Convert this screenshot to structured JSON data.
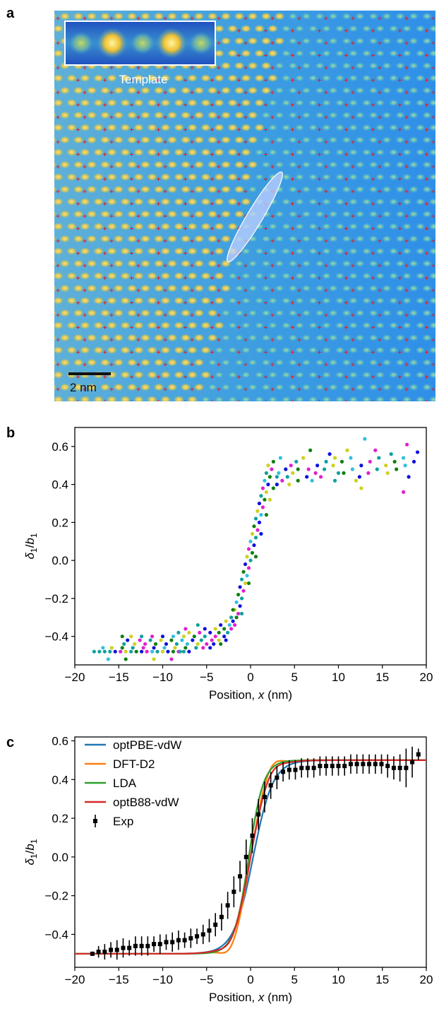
{
  "panels": {
    "a": {
      "letter": "a",
      "inset_label": "Template",
      "scale_bar_label": "2 nm",
      "colors": {
        "background": "#3a9fe0",
        "atom_bright": "#f5d050",
        "marker": "#e02020",
        "highlight": "#b8c8ff"
      }
    },
    "b": {
      "letter": "b"
    },
    "c": {
      "letter": "c"
    }
  },
  "chart_data": [
    {
      "panel": "b",
      "type": "scatter",
      "xlabel": "Position, x (nm)",
      "ylabel": "δ1/b1",
      "xlim": [
        -20,
        20
      ],
      "ylim": [
        -0.55,
        0.7
      ],
      "xticks": [
        -20,
        -15,
        -10,
        -5,
        0,
        5,
        10,
        15,
        20
      ],
      "yticks": [
        -0.4,
        -0.2,
        0.0,
        0.2,
        0.4,
        0.6
      ],
      "xtick_labels": [
        "−20",
        "−15",
        "−10",
        "−5",
        "0",
        "5",
        "10",
        "15",
        "20"
      ],
      "ytick_labels": [
        "−0.4",
        "−0.2",
        "0.0",
        "0.2",
        "0.4",
        "0.6"
      ],
      "series_colors": [
        "#1010e0",
        "#e020d0",
        "#10a0a0",
        "#d0d020",
        "#108010",
        "#30c0e0"
      ],
      "points": [
        [
          -17.8,
          -0.48,
          2
        ],
        [
          -17.2,
          -0.48,
          2
        ],
        [
          -16.6,
          -0.48,
          2
        ],
        [
          -16.0,
          -0.48,
          2
        ],
        [
          -15.4,
          -0.48,
          0
        ],
        [
          -14.8,
          -0.48,
          1
        ],
        [
          -14.2,
          -0.48,
          3
        ],
        [
          -13.6,
          -0.48,
          2
        ],
        [
          -13.0,
          -0.48,
          4
        ],
        [
          -12.4,
          -0.48,
          0
        ],
        [
          -11.8,
          -0.48,
          1
        ],
        [
          -11.2,
          -0.48,
          5
        ],
        [
          -10.6,
          -0.48,
          2
        ],
        [
          -10.0,
          -0.48,
          3
        ],
        [
          -9.4,
          -0.48,
          0
        ],
        [
          -8.8,
          -0.48,
          4
        ],
        [
          -8.2,
          -0.48,
          1
        ],
        [
          -7.6,
          -0.48,
          2
        ],
        [
          -7.0,
          -0.48,
          0
        ],
        [
          -16.8,
          -0.46,
          5
        ],
        [
          -15.8,
          -0.46,
          3
        ],
        [
          -14.6,
          -0.46,
          4
        ],
        [
          -13.4,
          -0.46,
          2
        ],
        [
          -12.2,
          -0.46,
          1
        ],
        [
          -11.0,
          -0.46,
          0
        ],
        [
          -9.8,
          -0.46,
          5
        ],
        [
          -8.6,
          -0.46,
          3
        ],
        [
          -7.4,
          -0.46,
          4
        ],
        [
          -6.2,
          -0.46,
          2
        ],
        [
          -5.4,
          -0.46,
          1
        ],
        [
          -4.6,
          -0.46,
          0
        ],
        [
          -14.4,
          -0.44,
          2
        ],
        [
          -13.2,
          -0.44,
          3
        ],
        [
          -12.0,
          -0.44,
          1
        ],
        [
          -10.8,
          -0.44,
          4
        ],
        [
          -9.6,
          -0.44,
          0
        ],
        [
          -8.4,
          -0.44,
          2
        ],
        [
          -7.2,
          -0.44,
          5
        ],
        [
          -6.0,
          -0.44,
          3
        ],
        [
          -5.0,
          -0.44,
          1
        ],
        [
          -4.2,
          -0.44,
          0
        ],
        [
          -3.4,
          -0.44,
          4
        ],
        [
          -14.0,
          -0.42,
          0
        ],
        [
          -12.6,
          -0.42,
          1
        ],
        [
          -11.4,
          -0.42,
          2
        ],
        [
          -10.2,
          -0.42,
          3
        ],
        [
          -9.0,
          -0.42,
          4
        ],
        [
          -7.8,
          -0.42,
          5
        ],
        [
          -6.6,
          -0.42,
          0
        ],
        [
          -5.6,
          -0.42,
          2
        ],
        [
          -4.4,
          -0.42,
          1
        ],
        [
          -3.6,
          -0.42,
          3
        ],
        [
          -2.8,
          -0.42,
          0
        ],
        [
          -14.6,
          -0.4,
          4
        ],
        [
          -13.6,
          -0.4,
          3
        ],
        [
          -12.4,
          -0.4,
          2
        ],
        [
          -11.2,
          -0.4,
          1
        ],
        [
          -10.0,
          -0.4,
          0
        ],
        [
          -8.8,
          -0.4,
          5
        ],
        [
          -7.6,
          -0.4,
          3
        ],
        [
          -6.4,
          -0.4,
          4
        ],
        [
          -5.2,
          -0.4,
          2
        ],
        [
          -4.0,
          -0.4,
          1
        ],
        [
          -3.0,
          -0.4,
          0
        ],
        [
          -8.2,
          -0.38,
          2
        ],
        [
          -7.0,
          -0.38,
          3
        ],
        [
          -5.8,
          -0.38,
          1
        ],
        [
          -4.6,
          -0.38,
          0
        ],
        [
          -3.6,
          -0.38,
          4
        ],
        [
          -2.6,
          -0.38,
          2
        ],
        [
          -7.4,
          -0.36,
          1
        ],
        [
          -5.2,
          -0.36,
          0
        ],
        [
          -4.0,
          -0.36,
          3
        ],
        [
          -3.0,
          -0.36,
          4
        ],
        [
          -2.2,
          -0.36,
          1
        ],
        [
          -6.0,
          -0.34,
          2
        ],
        [
          -3.4,
          -0.34,
          0
        ],
        [
          -2.4,
          -0.34,
          5
        ],
        [
          -1.8,
          -0.34,
          1
        ],
        [
          -2.8,
          -0.32,
          3
        ],
        [
          -2.0,
          -0.32,
          0
        ],
        [
          -1.6,
          -0.3,
          4
        ],
        [
          -2.2,
          -0.3,
          2
        ],
        [
          -1.4,
          -0.28,
          1
        ],
        [
          -1.8,
          -0.26,
          3
        ],
        [
          -1.2,
          -0.24,
          0
        ],
        [
          -1.6,
          -0.22,
          5
        ],
        [
          -1.0,
          -0.2,
          2
        ],
        [
          -1.4,
          -0.18,
          4
        ],
        [
          -0.8,
          -0.16,
          1
        ],
        [
          -1.2,
          -0.14,
          0
        ],
        [
          -0.6,
          -0.12,
          3
        ],
        [
          -1.0,
          -0.1,
          2
        ],
        [
          -0.4,
          -0.08,
          5
        ],
        [
          -0.8,
          -0.06,
          4
        ],
        [
          -0.2,
          -0.04,
          1
        ],
        [
          -0.6,
          -0.02,
          0
        ],
        [
          0.0,
          0.0,
          2
        ],
        [
          -0.4,
          0.02,
          3
        ],
        [
          0.2,
          0.04,
          4
        ],
        [
          -0.2,
          0.06,
          1
        ],
        [
          0.4,
          0.08,
          0
        ],
        [
          0.0,
          0.1,
          5
        ],
        [
          0.6,
          0.12,
          2
        ],
        [
          0.2,
          0.14,
          3
        ],
        [
          0.8,
          0.16,
          1
        ],
        [
          0.4,
          0.18,
          4
        ],
        [
          1.0,
          0.2,
          0
        ],
        [
          0.6,
          0.22,
          2
        ],
        [
          1.2,
          0.24,
          5
        ],
        [
          0.8,
          0.26,
          3
        ],
        [
          1.4,
          0.28,
          1
        ],
        [
          1.0,
          0.3,
          0
        ],
        [
          1.6,
          0.32,
          4
        ],
        [
          1.2,
          0.34,
          2
        ],
        [
          1.8,
          0.36,
          3
        ],
        [
          1.4,
          0.38,
          1
        ],
        [
          2.0,
          0.4,
          0
        ],
        [
          1.6,
          0.42,
          5
        ],
        [
          2.2,
          0.44,
          4
        ],
        [
          1.8,
          0.46,
          2
        ],
        [
          2.4,
          0.48,
          1
        ],
        [
          2.0,
          0.5,
          3
        ],
        [
          3.0,
          0.4,
          0
        ],
        [
          3.6,
          0.42,
          1
        ],
        [
          4.2,
          0.44,
          2
        ],
        [
          4.8,
          0.46,
          3
        ],
        [
          5.4,
          0.48,
          4
        ],
        [
          3.2,
          0.46,
          5
        ],
        [
          4.0,
          0.48,
          0
        ],
        [
          4.6,
          0.5,
          1
        ],
        [
          5.2,
          0.52,
          2
        ],
        [
          6.0,
          0.54,
          3
        ],
        [
          2.6,
          0.52,
          4
        ],
        [
          3.4,
          0.54,
          5
        ],
        [
          4.4,
          0.4,
          3
        ],
        [
          5.4,
          0.42,
          4
        ],
        [
          6.4,
          0.44,
          0
        ],
        [
          7.4,
          0.46,
          1
        ],
        [
          8.4,
          0.48,
          2
        ],
        [
          9.4,
          0.5,
          3
        ],
        [
          10.4,
          0.52,
          4
        ],
        [
          11.4,
          0.54,
          5
        ],
        [
          12.4,
          0.44,
          0
        ],
        [
          13.4,
          0.46,
          1
        ],
        [
          14.4,
          0.48,
          2
        ],
        [
          15.4,
          0.5,
          3
        ],
        [
          16.4,
          0.52,
          4
        ],
        [
          17.4,
          0.54,
          5
        ],
        [
          6.6,
          0.48,
          1
        ],
        [
          7.6,
          0.5,
          0
        ],
        [
          8.6,
          0.52,
          2
        ],
        [
          9.6,
          0.54,
          3
        ],
        [
          10.6,
          0.46,
          4
        ],
        [
          11.6,
          0.48,
          5
        ],
        [
          12.6,
          0.5,
          0
        ],
        [
          13.6,
          0.52,
          1
        ],
        [
          14.6,
          0.54,
          2
        ],
        [
          15.6,
          0.46,
          3
        ],
        [
          16.6,
          0.48,
          4
        ],
        [
          17.6,
          0.5,
          5
        ],
        [
          18.6,
          0.52,
          0
        ],
        [
          19.0,
          0.57,
          0
        ],
        [
          17.8,
          0.61,
          1
        ],
        [
          13.0,
          0.64,
          5
        ],
        [
          11.0,
          0.58,
          3
        ],
        [
          14.2,
          0.58,
          1
        ],
        [
          6.8,
          0.58,
          4
        ],
        [
          9.0,
          0.56,
          0
        ],
        [
          16.0,
          0.56,
          2
        ],
        [
          12.0,
          0.42,
          3
        ],
        [
          7.0,
          0.42,
          5
        ],
        [
          17.4,
          0.36,
          1
        ],
        [
          9.6,
          0.42,
          2
        ],
        [
          18.0,
          0.44,
          0
        ],
        [
          12.6,
          0.38,
          3
        ],
        [
          -11.0,
          -0.52,
          3
        ],
        [
          -9.0,
          -0.52,
          1
        ],
        [
          -14.2,
          -0.52,
          4
        ],
        [
          -16.2,
          -0.52,
          5
        ],
        [
          -8.0,
          -0.48,
          2
        ],
        [
          -2.0,
          -0.26,
          4
        ],
        [
          -1.0,
          -0.28,
          2
        ],
        [
          -0.2,
          -0.12,
          4
        ],
        [
          0.6,
          0.02,
          4
        ],
        [
          1.2,
          0.14,
          0
        ],
        [
          1.8,
          0.24,
          4
        ],
        [
          2.2,
          0.32,
          3
        ],
        [
          2.6,
          0.38,
          4
        ],
        [
          3.0,
          0.44,
          2
        ],
        [
          8.0,
          0.44,
          1
        ],
        [
          10.0,
          0.46,
          2
        ]
      ]
    },
    {
      "panel": "c",
      "type": "line",
      "xlabel": "Position, x (nm)",
      "ylabel": "δ1/b1",
      "xlim": [
        -20,
        20
      ],
      "ylim": [
        -0.57,
        0.62
      ],
      "xticks": [
        -20,
        -15,
        -10,
        -5,
        0,
        5,
        10,
        15,
        20
      ],
      "yticks": [
        -0.4,
        -0.2,
        0.0,
        0.2,
        0.4,
        0.6
      ],
      "xtick_labels": [
        "−20",
        "−15",
        "−10",
        "−5",
        "0",
        "5",
        "10",
        "15",
        "20"
      ],
      "ytick_labels": [
        "−0.4",
        "−0.2",
        "0.0",
        "0.2",
        "0.4",
        "0.6"
      ],
      "legend": "top-left",
      "series": [
        {
          "name": "optPBE-vdW",
          "color": "#1f77b4",
          "center": 0.3,
          "width": 1.6,
          "kink": 0.0
        },
        {
          "name": "DFT-D2",
          "color": "#ff7f0e",
          "center": 0.0,
          "width": 1.4,
          "kink": 0.9
        },
        {
          "name": "LDA",
          "color": "#2ca02c",
          "center": -0.2,
          "width": 1.2,
          "kink": 0.0
        },
        {
          "name": "optB88-vdW",
          "color": "#d62728",
          "center": 0.0,
          "width": 1.5,
          "kink": 0.5
        }
      ],
      "exp": {
        "name": "Exp",
        "color": "#000000",
        "x": [
          -18.0,
          -17.3,
          -16.6,
          -15.9,
          -15.2,
          -14.5,
          -13.8,
          -13.1,
          -12.4,
          -11.7,
          -11.0,
          -10.3,
          -9.6,
          -8.9,
          -8.2,
          -7.5,
          -6.8,
          -6.1,
          -5.4,
          -4.7,
          -4.0,
          -3.3,
          -2.6,
          -1.9,
          -1.2,
          -0.5,
          0.2,
          0.9,
          1.6,
          2.3,
          3.0,
          3.7,
          4.4,
          5.1,
          5.8,
          6.5,
          7.2,
          7.9,
          8.6,
          9.3,
          10.0,
          10.7,
          11.4,
          12.1,
          12.8,
          13.5,
          14.2,
          14.9,
          15.6,
          16.3,
          17.0,
          17.7,
          18.4,
          19.1
        ],
        "y": [
          -0.5,
          -0.49,
          -0.49,
          -0.48,
          -0.48,
          -0.47,
          -0.47,
          -0.46,
          -0.46,
          -0.46,
          -0.45,
          -0.45,
          -0.44,
          -0.44,
          -0.43,
          -0.43,
          -0.42,
          -0.41,
          -0.4,
          -0.38,
          -0.35,
          -0.31,
          -0.25,
          -0.18,
          -0.1,
          0.0,
          0.11,
          0.22,
          0.31,
          0.37,
          0.41,
          0.44,
          0.45,
          0.45,
          0.46,
          0.46,
          0.46,
          0.47,
          0.47,
          0.47,
          0.47,
          0.47,
          0.48,
          0.48,
          0.48,
          0.48,
          0.48,
          0.48,
          0.47,
          0.46,
          0.46,
          0.46,
          0.49,
          0.53
        ],
        "err": [
          0.01,
          0.03,
          0.04,
          0.04,
          0.05,
          0.05,
          0.04,
          0.05,
          0.05,
          0.05,
          0.04,
          0.05,
          0.04,
          0.05,
          0.05,
          0.04,
          0.05,
          0.04,
          0.05,
          0.06,
          0.06,
          0.07,
          0.07,
          0.08,
          0.08,
          0.09,
          0.09,
          0.08,
          0.08,
          0.07,
          0.06,
          0.05,
          0.05,
          0.05,
          0.05,
          0.05,
          0.05,
          0.05,
          0.05,
          0.05,
          0.05,
          0.05,
          0.05,
          0.05,
          0.05,
          0.05,
          0.05,
          0.05,
          0.06,
          0.06,
          0.07,
          0.1,
          0.08,
          0.03
        ]
      }
    }
  ]
}
